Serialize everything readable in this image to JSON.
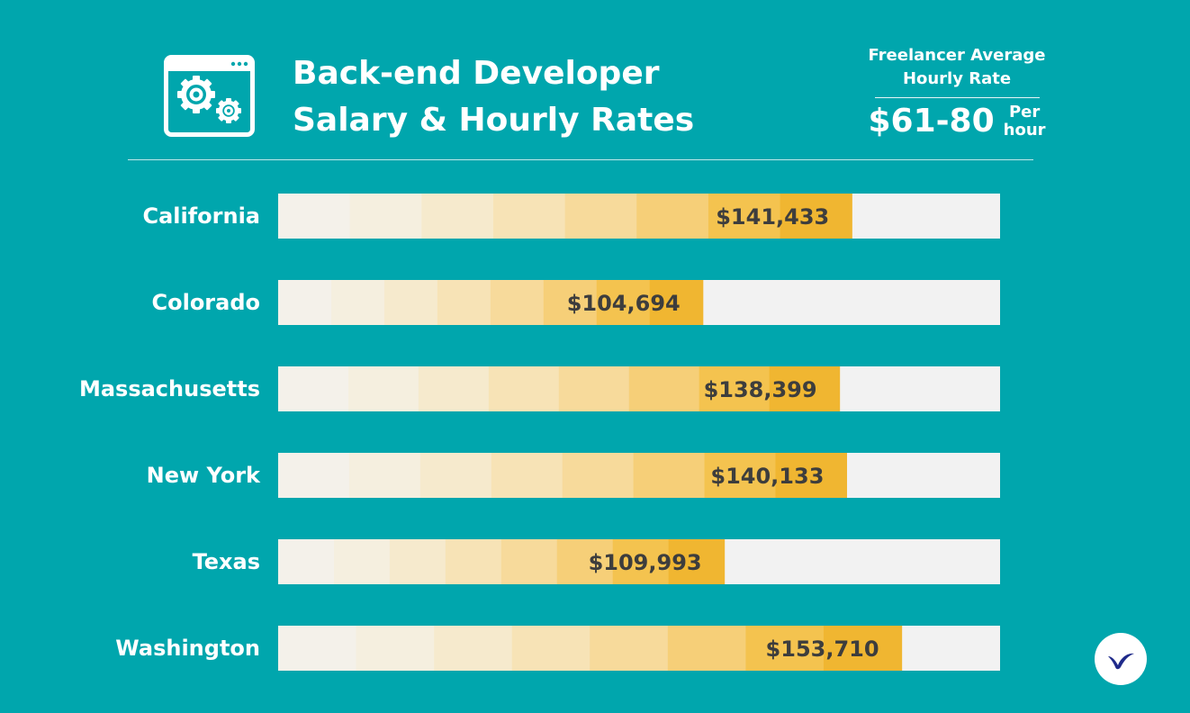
{
  "colors": {
    "background": "#00a6ad",
    "track": "#f2f2f2",
    "text_white": "#ffffff",
    "label_dark": "#3d3d3d",
    "logo_blue": "#1f2a8a",
    "gradient_stops": [
      "#f4f1ea",
      "#f5efdf",
      "#f6eacd",
      "#f7e3b6",
      "#f7da9b",
      "#f6cf78",
      "#f4c34f",
      "#f0b631"
    ]
  },
  "header": {
    "icon": "window-gears-icon",
    "title_line1": "Back-end Developer",
    "title_line2": "Salary & Hourly Rates"
  },
  "rate": {
    "label_line1": "Freelancer Average",
    "label_line2": "Hourly Rate",
    "value": "$61-80",
    "unit_line1": "Per",
    "unit_line2": "hour"
  },
  "logo": {
    "icon": "bird-logo-icon"
  },
  "chart_data": {
    "type": "bar",
    "orientation": "horizontal",
    "title": "Back-end Developer Salary & Hourly Rates",
    "categories": [
      "California",
      "Colorado",
      "Massachusetts",
      "New York",
      "Texas",
      "Washington"
    ],
    "values": [
      141433,
      104694,
      138399,
      140133,
      109993,
      153710
    ],
    "value_labels": [
      "$141,433",
      "$104,694",
      "$138,399",
      "$140,133",
      "$109,993",
      "$153,710"
    ],
    "xlim": [
      0,
      178000
    ],
    "xlabel": "",
    "ylabel": "",
    "grid": false,
    "legend": "none"
  }
}
